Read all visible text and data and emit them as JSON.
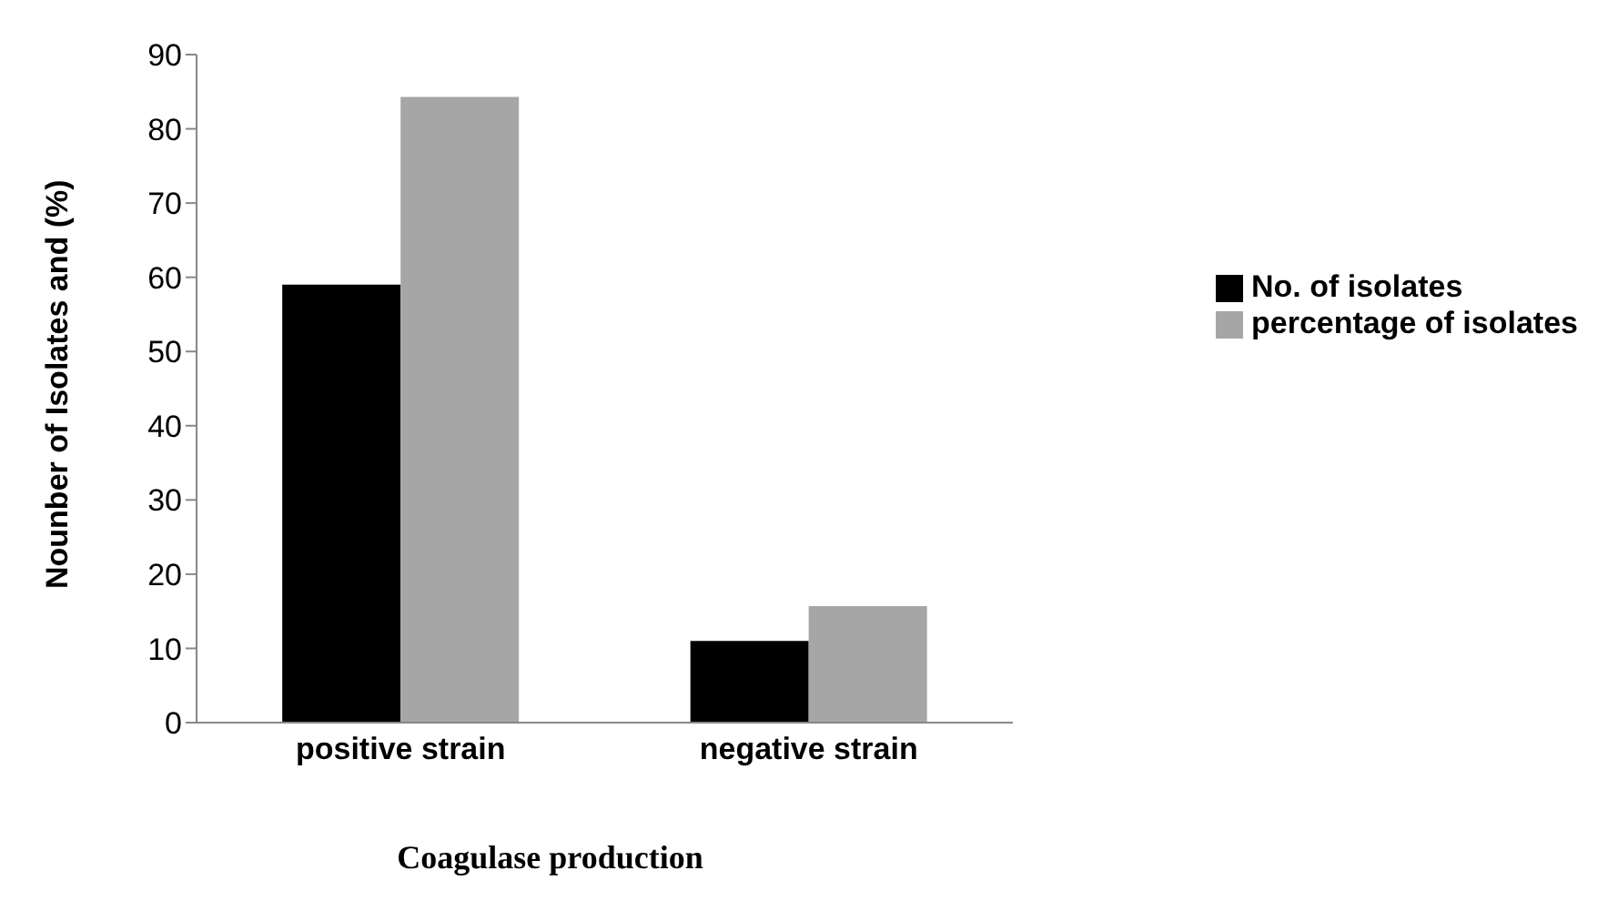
{
  "chart_data": {
    "type": "bar",
    "xlabel": "Coagulase production",
    "ylabel": "Nounber of Isolates and (%)",
    "categories": [
      "positive strain",
      "negative strain"
    ],
    "series": [
      {
        "name": "No. of isolates",
        "color": "#000000",
        "values": [
          59,
          11
        ]
      },
      {
        "name": "percentage of isolates",
        "color": "#a6a6a6",
        "values": [
          84.3,
          15.7
        ]
      }
    ],
    "ylim": [
      0,
      90
    ],
    "yticks": [
      0,
      10,
      20,
      30,
      40,
      50,
      60,
      70,
      80,
      90
    ],
    "grid": false,
    "legend": "right"
  }
}
